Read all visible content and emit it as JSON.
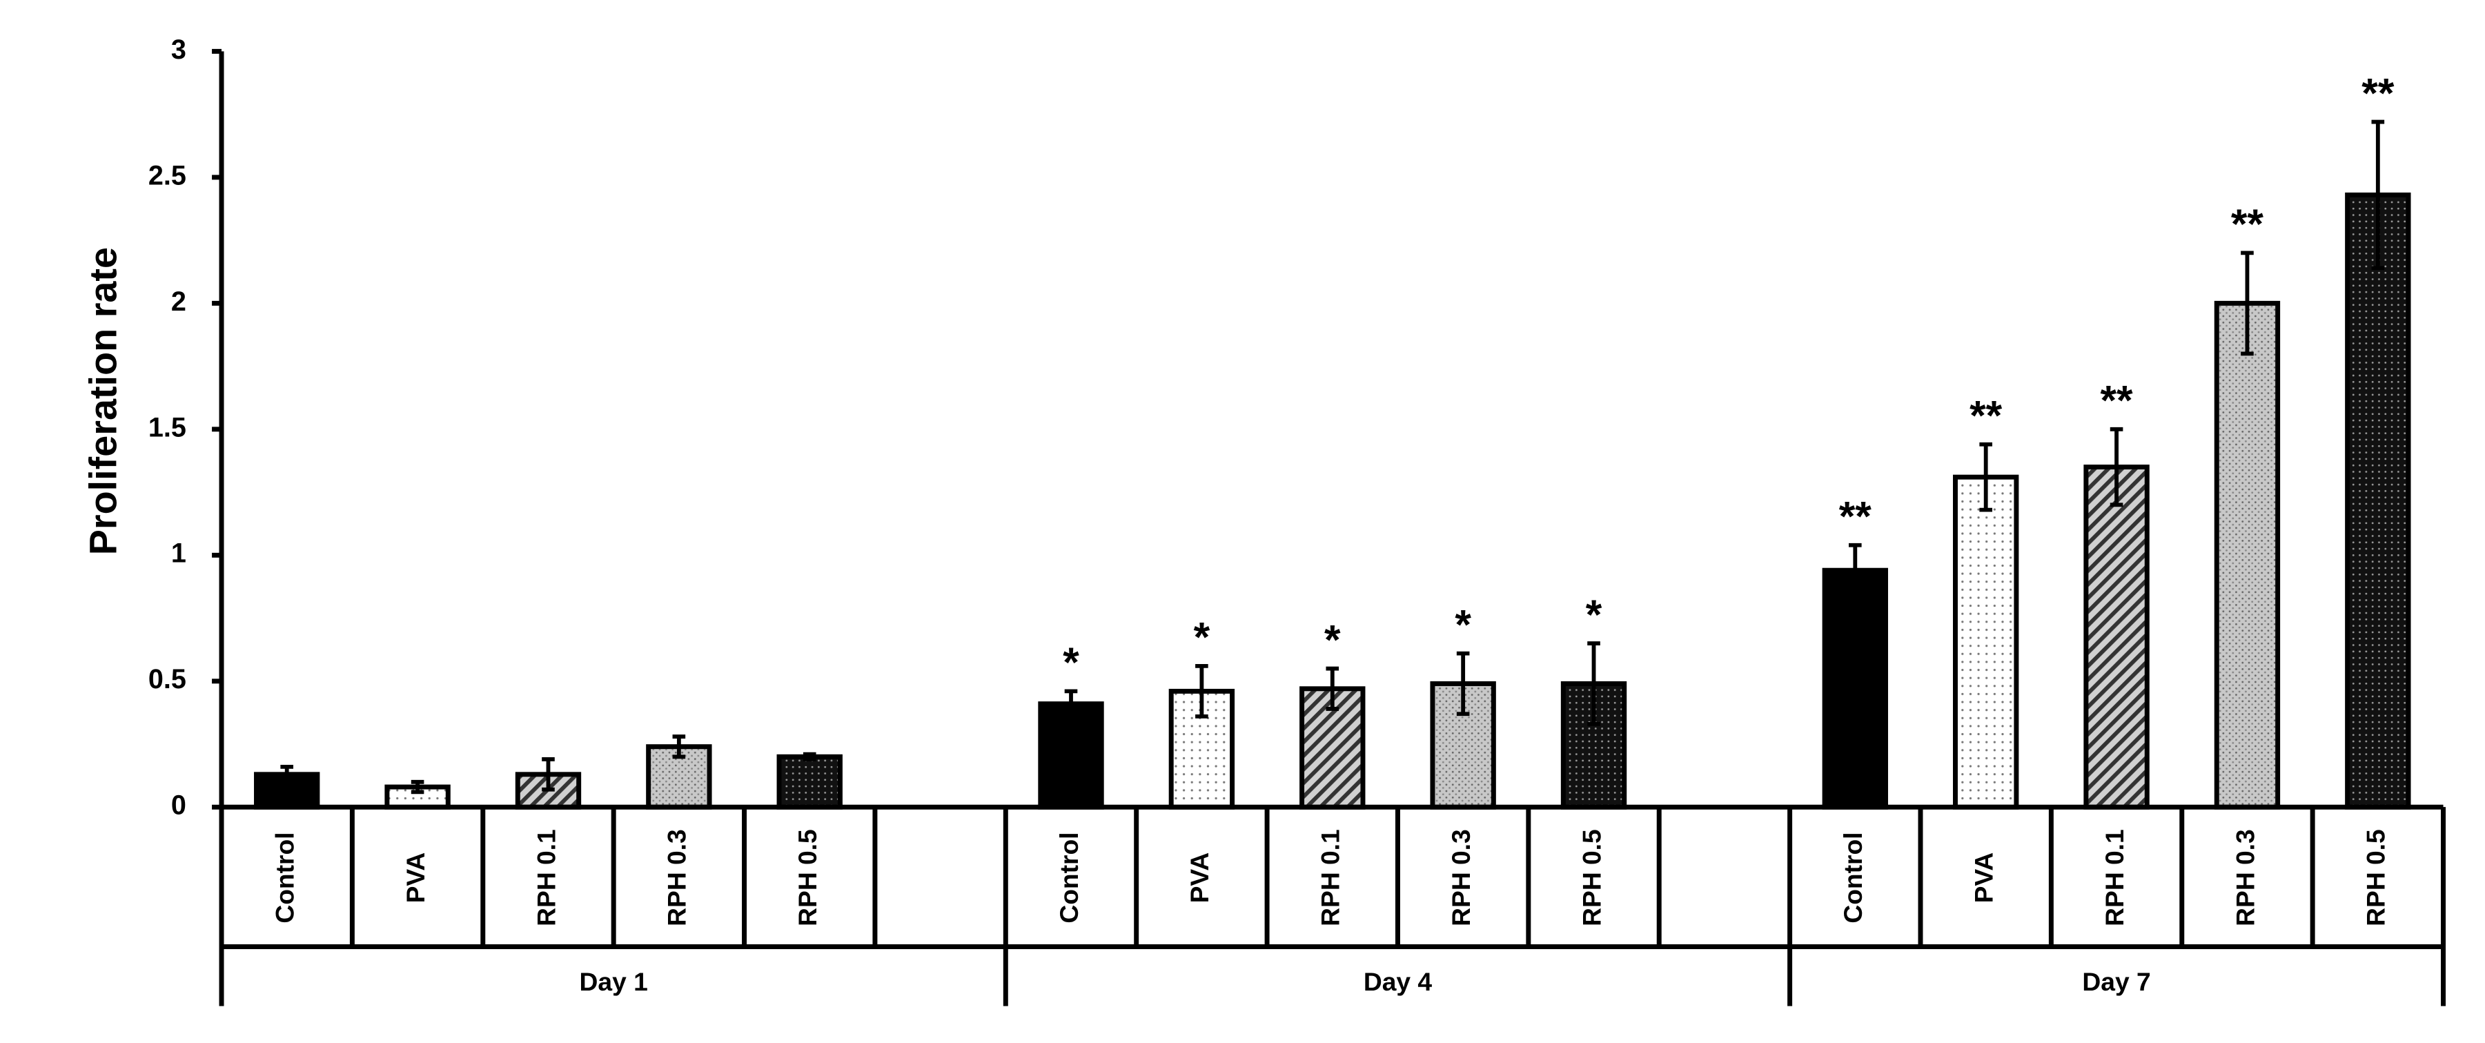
{
  "chart_data": {
    "type": "bar",
    "ylabel": "Proliferation rate",
    "categories": [
      "Day 1",
      "Day 4",
      "Day 7"
    ],
    "ylim": [
      0,
      3
    ],
    "yticks": [
      0,
      0.5,
      1,
      1.5,
      2,
      2.5,
      3
    ],
    "series": [
      {
        "name": "Control",
        "color": "#000000",
        "pattern": "solid",
        "values": [
          0.13,
          0.41,
          0.94
        ],
        "errors": [
          0.03,
          0.05,
          0.1
        ],
        "annotations": [
          null,
          "*",
          "**"
        ]
      },
      {
        "name": "PVA",
        "color": "#ffffff",
        "pattern": "dots",
        "values": [
          0.08,
          0.46,
          1.31
        ],
        "errors": [
          0.02,
          0.1,
          0.13
        ],
        "annotations": [
          null,
          "*",
          "**"
        ]
      },
      {
        "name": "RPH 0.1",
        "color": "#bfbfbf",
        "pattern": "hatch",
        "values": [
          0.13,
          0.47,
          1.35
        ],
        "errors": [
          0.06,
          0.08,
          0.15
        ],
        "annotations": [
          null,
          "*",
          "**"
        ]
      },
      {
        "name": "RPH 0.3",
        "color": "#c8c8c8",
        "pattern": "speckle",
        "values": [
          0.24,
          0.49,
          2.0
        ],
        "errors": [
          0.04,
          0.12,
          0.2
        ],
        "annotations": [
          null,
          "*",
          "**"
        ]
      },
      {
        "name": "RPH 0.5",
        "color": "#111111",
        "pattern": "dense-dots",
        "values": [
          0.2,
          0.49,
          2.43
        ],
        "errors": [
          0.01,
          0.16,
          0.29
        ],
        "annotations": [
          null,
          "*",
          "**"
        ]
      }
    ]
  }
}
